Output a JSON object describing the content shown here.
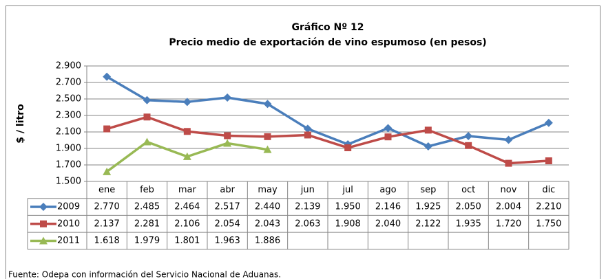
{
  "chart_data": {
    "type": "line",
    "title": "Gráfico Nº 12",
    "subtitle": "Precio medio de exportación de vino espumoso (en pesos)",
    "y_label": "$ / litro",
    "source": "Fuente: Odepa con información del Servicio Nacional de Aduanas.",
    "categories": [
      "ene",
      "feb",
      "mar",
      "abr",
      "may",
      "jun",
      "jul",
      "ago",
      "sep",
      "oct",
      "nov",
      "dic"
    ],
    "ylim": [
      1500,
      2900
    ],
    "yticks": [
      {
        "value": 1500,
        "label": "1.500"
      },
      {
        "value": 1700,
        "label": "1.700"
      },
      {
        "value": 1900,
        "label": "1.900"
      },
      {
        "value": 2100,
        "label": "2.100"
      },
      {
        "value": 2300,
        "label": "2.300"
      },
      {
        "value": 2500,
        "label": "2.500"
      },
      {
        "value": 2700,
        "label": "2.700"
      },
      {
        "value": 2900,
        "label": "2.900"
      }
    ],
    "grid": true,
    "series": [
      {
        "name": "2009",
        "color": "#4a7ebb",
        "marker": "diamond",
        "values": [
          2770,
          2485,
          2464,
          2517,
          2440,
          2139,
          1950,
          2146,
          1925,
          2050,
          2004,
          2210
        ],
        "value_labels": [
          "2.770",
          "2.485",
          "2.464",
          "2.517",
          "2.440",
          "2.139",
          "1.950",
          "2.146",
          "1.925",
          "2.050",
          "2.004",
          "2.210"
        ]
      },
      {
        "name": "2010",
        "color": "#be4b48",
        "marker": "square",
        "values": [
          2137,
          2281,
          2106,
          2054,
          2043,
          2063,
          1908,
          2040,
          2122,
          1935,
          1720,
          1750
        ],
        "value_labels": [
          "2.137",
          "2.281",
          "2.106",
          "2.054",
          "2.043",
          "2.063",
          "1.908",
          "2.040",
          "2.122",
          "1.935",
          "1.720",
          "1.750"
        ]
      },
      {
        "name": "2011",
        "color": "#98b954",
        "marker": "triangle",
        "values": [
          1618,
          1979,
          1801,
          1963,
          1886,
          null,
          null,
          null,
          null,
          null,
          null,
          null
        ],
        "value_labels": [
          "1.618",
          "1.979",
          "1.801",
          "1.963",
          "1.886",
          null,
          null,
          null,
          null,
          null,
          null,
          null
        ]
      }
    ]
  }
}
